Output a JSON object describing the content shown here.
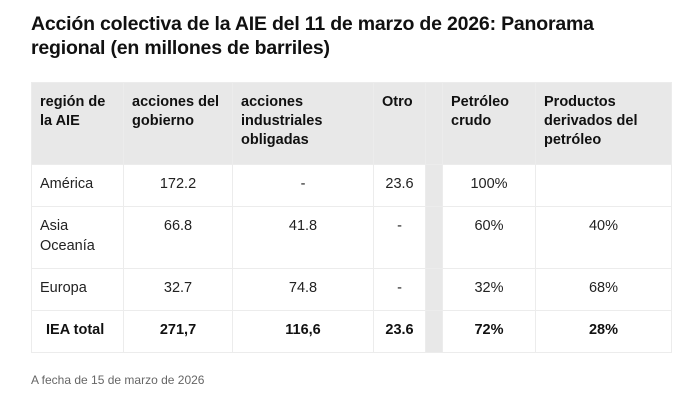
{
  "title": "Acción colectiva de la AIE del 11 de marzo de 2026: Panorama regional (en millones de barriles)",
  "table": {
    "headers": [
      "región de la AIE",
      "acciones del gobierno",
      "acciones industriales obligadas",
      "Otro",
      "",
      "Petróleo crudo",
      "Productos derivados del petróleo"
    ],
    "rows": [
      {
        "region": "América",
        "gov": "172.2",
        "industry": "-",
        "other": "23.6",
        "crude": "100%",
        "products": ""
      },
      {
        "region": "Asia Oceanía",
        "gov": "66.8",
        "industry": "41.8",
        "other": "-",
        "crude": "60%",
        "products": "40%"
      },
      {
        "region": "Europa",
        "gov": "32.7",
        "industry": "74.8",
        "other": "-",
        "crude": "32%",
        "products": "68%"
      }
    ],
    "total": {
      "region": "IEA total",
      "gov": "271,7",
      "industry": "116,6",
      "other": "23.6",
      "crude": "72%",
      "products": "28%"
    }
  },
  "footnote": "A fecha de 15 de marzo de 2026"
}
